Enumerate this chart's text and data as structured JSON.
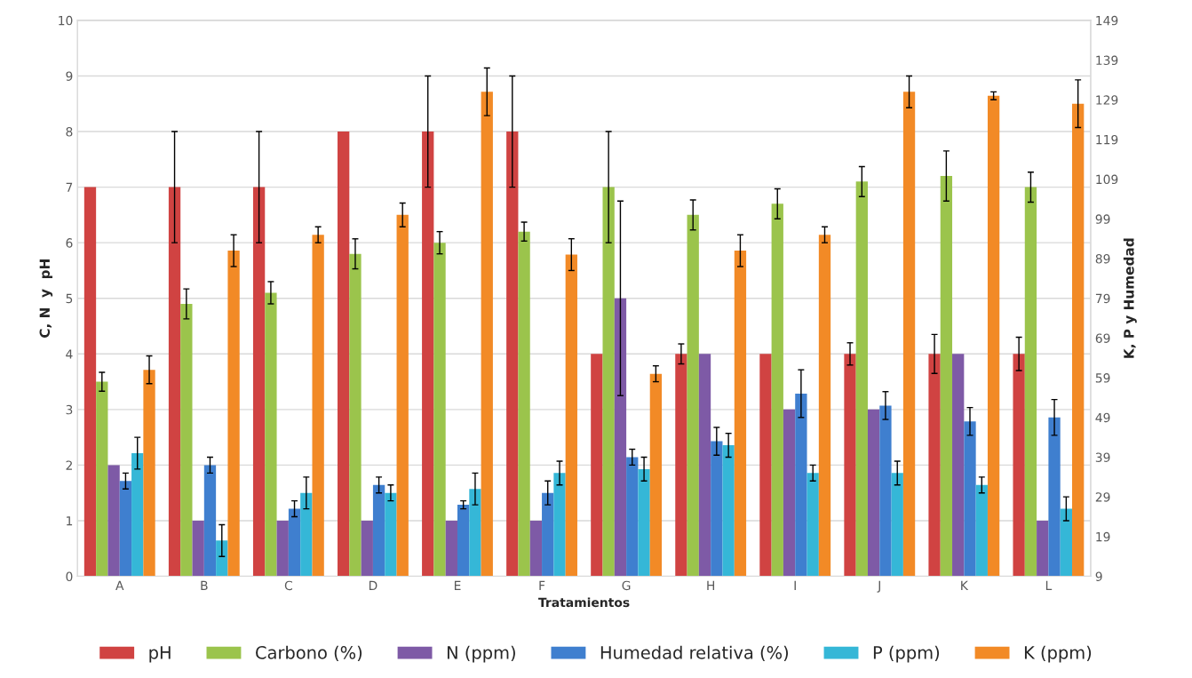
{
  "chart_data": {
    "type": "bar",
    "xlabel": "Tratamientos",
    "ylabel": "C, N  y  pH",
    "y2label": "K, P y Humedad",
    "categories": [
      "A",
      "B",
      "C",
      "D",
      "E",
      "F",
      "G",
      "H",
      "I",
      "J",
      "K",
      "L"
    ],
    "series": [
      {
        "name": "pH",
        "color": "#d04342",
        "values": [
          7,
          7,
          7,
          8,
          8,
          8,
          4,
          4,
          4,
          4,
          4,
          4
        ],
        "errors": [
          null,
          1,
          1,
          null,
          1,
          1,
          null,
          0.18,
          null,
          0.2,
          0.35,
          0.3
        ]
      },
      {
        "name": "Carbono (%)",
        "color": "#9bc44c",
        "values": [
          3.5,
          4.9,
          5.1,
          5.8,
          6.0,
          6.2,
          7.0,
          6.5,
          6.7,
          7.1,
          7.2,
          7.0
        ],
        "errors": [
          0.17,
          0.27,
          0.2,
          0.27,
          0.2,
          0.17,
          1.0,
          0.27,
          0.27,
          0.27,
          0.45,
          0.27
        ]
      },
      {
        "name": "N (ppm)",
        "color": "#7e5aa6",
        "values": [
          2,
          1,
          1,
          1,
          1,
          1,
          5,
          4,
          3,
          3,
          4,
          1
        ],
        "errors": [
          null,
          null,
          null,
          null,
          null,
          null,
          1.75,
          null,
          null,
          null,
          null,
          null
        ]
      },
      {
        "name": "Humedad relativa (%)",
        "color": "#3f7fcf",
        "axis": "y2",
        "values": [
          33,
          37,
          26,
          32,
          27,
          30,
          39,
          43,
          55,
          52,
          48,
          49
        ],
        "errors": [
          2,
          2,
          2,
          2,
          1,
          3,
          2,
          3.5,
          6,
          3.5,
          3.5,
          4.5
        ]
      },
      {
        "name": "P (ppm)",
        "color": "#35b7d7",
        "axis": "y2",
        "values": [
          40,
          18,
          30,
          30,
          31,
          35,
          36,
          42,
          35,
          35,
          32,
          26
        ],
        "errors": [
          4,
          4,
          4,
          2,
          4,
          3,
          3,
          3,
          2,
          3,
          2,
          3
        ]
      },
      {
        "name": "K (ppm)",
        "color": "#f28a26",
        "axis": "y2",
        "values": [
          61,
          91,
          95,
          100,
          131,
          90,
          60,
          91,
          95,
          131,
          130,
          128
        ],
        "errors": [
          3.5,
          4,
          2,
          3,
          6,
          4,
          2,
          4,
          2,
          4,
          1,
          6
        ]
      }
    ],
    "ylim": [
      0,
      10
    ],
    "yticks": [
      0,
      1,
      2,
      3,
      4,
      5,
      6,
      7,
      8,
      9,
      10
    ],
    "y2lim": [
      9,
      149
    ],
    "y2ticks": [
      9,
      19,
      29,
      39,
      49,
      59,
      69,
      79,
      89,
      99,
      109,
      119,
      129,
      139,
      149
    ],
    "grid": "y",
    "legend": "bottom"
  }
}
